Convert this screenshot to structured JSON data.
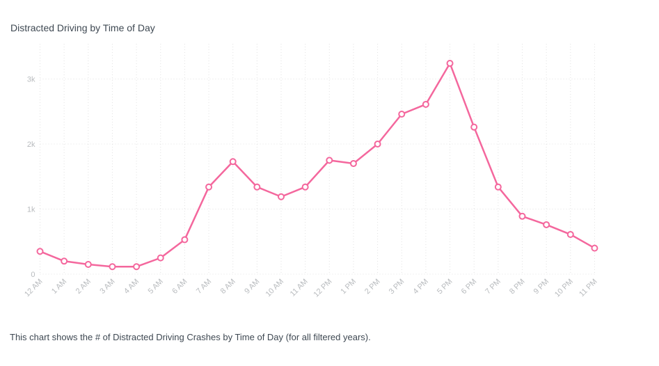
{
  "page": {
    "title": "Distracted Driving by Time of Day",
    "caption": "This chart shows the # of Distracted Driving Crashes by Time of Day (for all filtered years)."
  },
  "chart_data": {
    "type": "line",
    "title": "Distracted Driving by Time of Day",
    "xlabel": "",
    "ylabel": "",
    "categories": [
      "12 AM",
      "1 AM",
      "2 AM",
      "3 AM",
      "4 AM",
      "5 AM",
      "6 AM",
      "7 AM",
      "8 AM",
      "9 AM",
      "10 AM",
      "11 AM",
      "12 PM",
      "1 PM",
      "2 PM",
      "3 PM",
      "4 PM",
      "5 PM",
      "6 PM",
      "7 PM",
      "8 PM",
      "9 PM",
      "10 PM",
      "11 PM"
    ],
    "series": [
      {
        "name": "Distracted Driving Crashes",
        "values": [
          350,
          200,
          150,
          115,
          115,
          250,
          530,
          1340,
          1730,
          1340,
          1190,
          1340,
          1750,
          1700,
          2000,
          2460,
          2610,
          3240,
          2260,
          1340,
          890,
          760,
          610,
          400
        ]
      }
    ],
    "ylim": [
      0,
      3540
    ],
    "yticks": [
      {
        "value": 0,
        "label": "0"
      },
      {
        "value": 1000,
        "label": "1k"
      },
      {
        "value": 2000,
        "label": "2k"
      },
      {
        "value": 3000,
        "label": "3k"
      }
    ],
    "grid": "dotted",
    "legend": "none",
    "colors": {
      "line": "#f4679d",
      "marker_fill": "#ffffff",
      "grid": "#e2e2e2",
      "axis_labels": "#b8bbbe",
      "title_text": "#3e4852"
    }
  }
}
